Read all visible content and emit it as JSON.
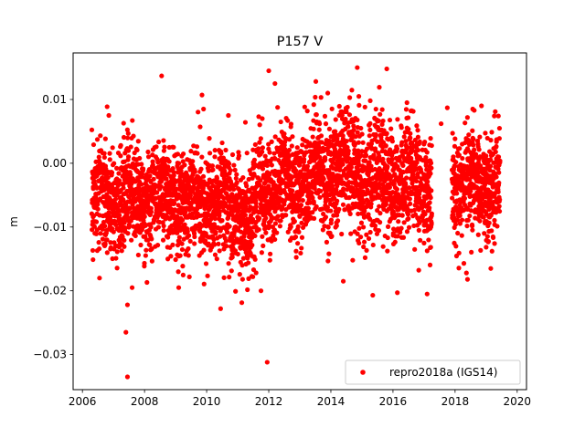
{
  "chart_data": {
    "type": "scatter",
    "title": "P157 V",
    "xlabel": "",
    "ylabel": "m",
    "xlim": [
      2005.7,
      2020.3
    ],
    "ylim": [
      -0.0355,
      0.0173
    ],
    "xticks": [
      2006,
      2008,
      2010,
      2012,
      2014,
      2016,
      2018,
      2020
    ],
    "xtick_labels": [
      "2006",
      "2008",
      "2010",
      "2012",
      "2014",
      "2016",
      "2018",
      "2020"
    ],
    "yticks": [
      -0.03,
      -0.02,
      -0.01,
      0.0,
      0.01
    ],
    "ytick_labels": [
      "−0.03",
      "−0.02",
      "−0.01",
      "0.00",
      "0.01"
    ],
    "grid": false,
    "legend_position": "lower-right",
    "series": [
      {
        "name": "repro2018a (IGS14)",
        "color": "#ff0000",
        "marker": "circle",
        "segments": [
          {
            "start": 2006.3,
            "end": 2007.5,
            "base_start": -0.006,
            "base_end": -0.0055,
            "spread": 0.004
          },
          {
            "start": 2007.5,
            "end": 2009.0,
            "base_start": -0.0055,
            "base_end": -0.005,
            "spread": 0.004
          },
          {
            "start": 2009.0,
            "end": 2010.3,
            "base_start": -0.006,
            "base_end": -0.006,
            "spread": 0.004
          },
          {
            "start": 2010.3,
            "end": 2011.6,
            "base_start": -0.006,
            "base_end": -0.0085,
            "spread": 0.0045
          },
          {
            "start": 2011.6,
            "end": 2012.7,
            "base_start": -0.004,
            "base_end": -0.003,
            "spread": 0.0045
          },
          {
            "start": 2012.7,
            "end": 2014.0,
            "base_start": -0.003,
            "base_end": -0.002,
            "spread": 0.0042
          },
          {
            "start": 2014.0,
            "end": 2015.5,
            "base_start": -0.001,
            "base_end": -0.0015,
            "spread": 0.0045
          },
          {
            "start": 2015.5,
            "end": 2017.25,
            "base_start": -0.002,
            "base_end": -0.004,
            "spread": 0.0045
          },
          {
            "start": 2017.9,
            "end": 2019.45,
            "base_start": -0.003,
            "base_end": -0.003,
            "spread": 0.004
          }
        ],
        "outliers": [
          [
            2007.45,
            -0.0335
          ],
          [
            2007.4,
            -0.0265
          ],
          [
            2007.45,
            -0.0222
          ],
          [
            2008.55,
            0.0137
          ],
          [
            2009.85,
            0.0107
          ],
          [
            2009.9,
            0.0085
          ],
          [
            2011.95,
            -0.0312
          ],
          [
            2012.0,
            0.0145
          ],
          [
            2012.2,
            0.0125
          ],
          [
            2014.85,
            0.015
          ],
          [
            2015.8,
            0.0148
          ],
          [
            2015.35,
            -0.0207
          ],
          [
            2017.1,
            -0.0205
          ],
          [
            2016.45,
            0.0095
          ],
          [
            2017.75,
            0.0087
          ],
          [
            2018.85,
            0.009
          ],
          [
            2007.6,
            -0.0195
          ],
          [
            2008.75,
            -0.015
          ],
          [
            2011.75,
            -0.02
          ],
          [
            2013.45,
            0.0092
          ],
          [
            2014.4,
            -0.0185
          ],
          [
            2018.4,
            -0.0182
          ],
          [
            2019.15,
            -0.0165
          ],
          [
            2010.45,
            -0.0228
          ],
          [
            2006.55,
            -0.018
          ],
          [
            2009.1,
            -0.0195
          ],
          [
            2010.7,
            0.0075
          ],
          [
            2006.85,
            0.0075
          ],
          [
            2017.55,
            0.0062
          ],
          [
            2013.9,
            0.011
          ]
        ]
      }
    ]
  }
}
